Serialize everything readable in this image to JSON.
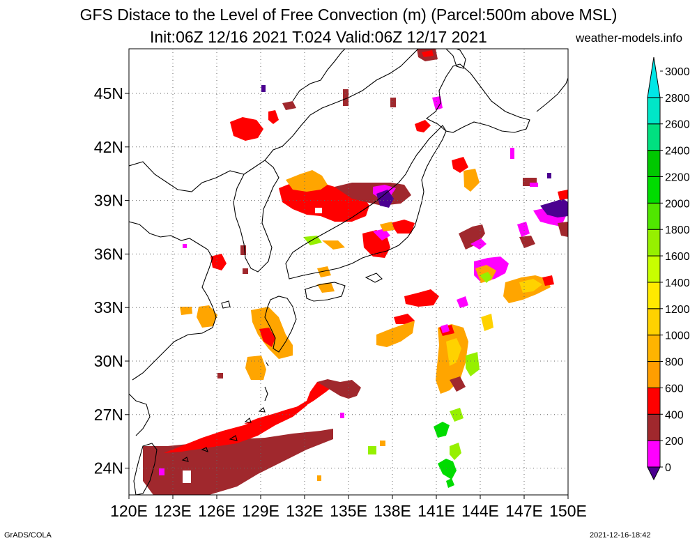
{
  "title": {
    "line1": "GFS Distace to the Level of Free Convection (m) (Parcel:500m above MSL)",
    "line2": "Init:06Z 12/16 2021 T:024 Valid:06Z 12/17 2021"
  },
  "site": "weather-models.info",
  "footer": {
    "left": "GrADS/COLA",
    "right": "2021-12-16-18:42"
  },
  "map": {
    "lon_range": [
      120,
      150
    ],
    "lat_range": [
      22.5,
      47.5
    ],
    "lon_ticks": [
      "120E",
      "123E",
      "126E",
      "129E",
      "132E",
      "135E",
      "138E",
      "141E",
      "144E",
      "147E",
      "150E"
    ],
    "lat_ticks": [
      "24N",
      "27N",
      "30N",
      "33N",
      "36N",
      "39N",
      "42N",
      "45N"
    ],
    "grid": "dotted"
  },
  "colorbar": {
    "labels": [
      "0",
      "200",
      "400",
      "600",
      "800",
      "1000",
      "1200",
      "1400",
      "1600",
      "1800",
      "2000",
      "2200",
      "2400",
      "2600",
      "2800",
      "3000"
    ],
    "colors": [
      "#4b0090",
      "#ff00ff",
      "#a0282d",
      "#ff0000",
      "#ff9e00",
      "#ffb400",
      "#ffd200",
      "#ffea00",
      "#c8ff00",
      "#96f000",
      "#50e600",
      "#00dc00",
      "#00c800",
      "#00e080",
      "#00e6c8",
      "#00e6e6"
    ]
  },
  "colors": {
    "purple": "#4b0090",
    "magenta": "#ff00ff",
    "brown": "#a0282d",
    "red": "#ff0000",
    "orange": "#ffa500",
    "yellow": "#ffd200",
    "lime": "#96f000",
    "green": "#00dc00"
  }
}
